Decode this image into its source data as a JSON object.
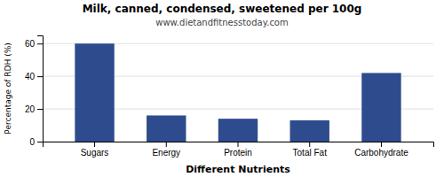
{
  "chart_data": {
    "type": "bar",
    "title": "Milk, canned, condensed, sweetened per 100g",
    "subtitle": "www.dietandfitnesstoday.com",
    "xlabel": "Different Nutrients",
    "ylabel": "Percentage of RDH (%)",
    "categories": [
      "Sugars",
      "Energy",
      "Protein",
      "Total Fat",
      "Carbohydrate"
    ],
    "values": [
      60,
      16,
      14,
      13,
      42
    ],
    "color": "#2e4b8e",
    "ylim": [
      0,
      65
    ],
    "yticks": [
      0,
      20,
      40,
      60
    ],
    "grid": true
  }
}
